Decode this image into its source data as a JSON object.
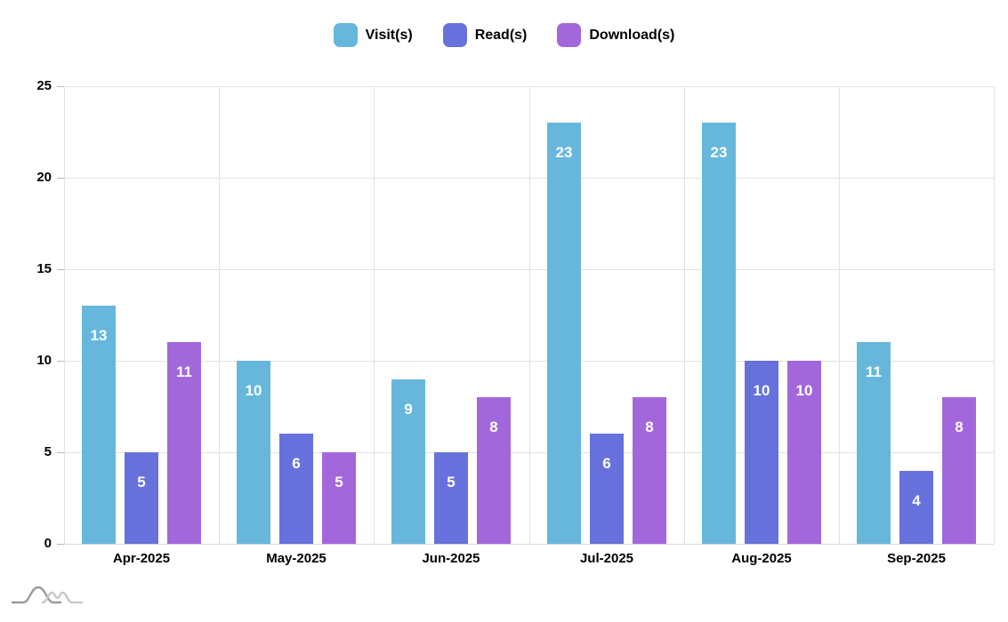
{
  "chart_data": {
    "type": "bar",
    "title": "",
    "xlabel": "",
    "ylabel": "",
    "categories": [
      "Apr-2025",
      "May-2025",
      "Jun-2025",
      "Jul-2025",
      "Aug-2025",
      "Sep-2025"
    ],
    "series": [
      {
        "name": "Visit(s)",
        "color": "#67b7dc",
        "values": [
          13,
          10,
          9,
          23,
          23,
          11
        ]
      },
      {
        "name": "Read(s)",
        "color": "#6771dc",
        "values": [
          5,
          6,
          5,
          6,
          10,
          4
        ]
      },
      {
        "name": "Download(s)",
        "color": "#a367dc",
        "values": [
          11,
          5,
          8,
          8,
          10,
          8
        ]
      }
    ],
    "ylim": [
      0,
      25
    ],
    "yticks": [
      0,
      5,
      10,
      15,
      20,
      25
    ],
    "grid": true,
    "legend_position": "top",
    "value_label_style": "white bold, inside bar near top"
  },
  "colors": {
    "background": "#ffffff",
    "gridline": "#e2e2e2",
    "axis_line": "#d4d4d4",
    "tick_mark": "#b8b8b8",
    "text": "#000000",
    "bar_value_text": "#ffffff",
    "watermark_dark": "#9a9a9a",
    "watermark_light": "#c9c9c9"
  },
  "watermark": {
    "name": "amcharts-logo"
  }
}
